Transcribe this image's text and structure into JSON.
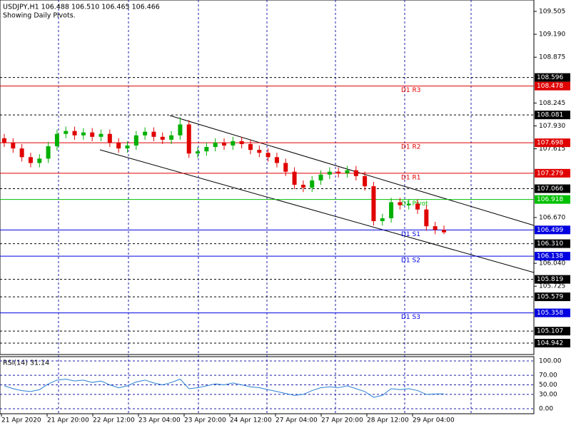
{
  "chart_data": [
    {
      "type": "candlestick",
      "title": "USDJPY,H1  106.488 106.510 106.465 106.466",
      "subtitle": "Showing Daily Pivots.",
      "up_color": "#00b000",
      "down_color": "#e00000",
      "ylim": [
        104.785,
        109.662
      ],
      "yticks": [
        109.505,
        {
          "value": 109.19,
          "label": "109.190"
        },
        108.875,
        108.245,
        {
          "value": 107.93,
          "label": "107.930"
        },
        107.615,
        {
          "value": 106.67,
          "label": "106.670"
        },
        {
          "value": 106.04,
          "label": "106.040"
        },
        105.725
      ],
      "open": [
        107.76,
        107.7,
        107.62,
        107.5,
        107.42,
        107.48,
        107.65,
        107.82,
        107.86,
        107.8,
        107.84,
        107.78,
        107.82,
        107.7,
        107.62,
        107.66,
        107.8,
        107.85,
        107.78,
        107.74,
        107.8,
        107.95,
        107.55,
        107.58,
        107.64,
        107.7,
        107.66,
        107.72,
        107.68,
        107.6,
        107.56,
        107.5,
        107.42,
        107.3,
        107.12,
        107.08,
        107.18,
        107.26,
        107.3,
        107.28,
        107.32,
        107.24,
        107.1,
        106.62,
        106.66,
        106.88,
        106.84,
        106.86,
        106.78,
        106.55,
        106.5
      ],
      "high": [
        107.82,
        107.76,
        107.68,
        107.56,
        107.54,
        107.71,
        107.88,
        107.92,
        107.92,
        107.9,
        107.9,
        107.88,
        107.88,
        107.76,
        107.72,
        107.86,
        107.91,
        107.91,
        107.84,
        107.86,
        108.05,
        108.01,
        107.64,
        107.7,
        107.76,
        107.76,
        107.78,
        107.78,
        107.74,
        107.66,
        107.62,
        107.56,
        107.48,
        107.36,
        107.18,
        107.24,
        107.32,
        107.36,
        107.36,
        107.38,
        107.38,
        107.3,
        107.16,
        106.72,
        106.94,
        106.94,
        106.92,
        106.92,
        106.84,
        106.61,
        106.56
      ],
      "low": [
        107.64,
        107.56,
        107.44,
        107.36,
        107.36,
        107.42,
        107.59,
        107.76,
        107.74,
        107.74,
        107.72,
        107.72,
        107.64,
        107.56,
        107.56,
        107.6,
        107.74,
        107.72,
        107.68,
        107.68,
        107.74,
        107.49,
        107.49,
        107.52,
        107.58,
        107.6,
        107.6,
        107.62,
        107.54,
        107.5,
        107.44,
        107.36,
        107.24,
        107.06,
        107.02,
        107.02,
        107.12,
        107.2,
        107.22,
        107.22,
        107.18,
        107.04,
        106.56,
        106.56,
        106.6,
        106.78,
        106.78,
        106.72,
        106.49,
        106.44,
        106.44
      ],
      "close": [
        107.7,
        107.62,
        107.5,
        107.42,
        107.48,
        107.65,
        107.82,
        107.86,
        107.8,
        107.84,
        107.78,
        107.82,
        107.7,
        107.62,
        107.66,
        107.8,
        107.85,
        107.78,
        107.74,
        107.8,
        107.95,
        107.55,
        107.58,
        107.64,
        107.7,
        107.66,
        107.72,
        107.68,
        107.6,
        107.56,
        107.5,
        107.42,
        107.3,
        107.12,
        107.08,
        107.18,
        107.26,
        107.3,
        107.28,
        107.32,
        107.24,
        107.1,
        106.62,
        106.66,
        106.88,
        106.84,
        106.86,
        106.78,
        106.55,
        106.5,
        106.466
      ],
      "levels": [
        {
          "value": 108.478,
          "label": "D1 R3",
          "color": "#e00000"
        },
        {
          "value": 107.698,
          "label": "D1 R2",
          "color": "#e00000"
        },
        {
          "value": 107.279,
          "label": "D1 R1",
          "color": "#e00000"
        },
        {
          "value": 106.918,
          "label": "D1 Pivot",
          "color": "#00c000"
        },
        {
          "value": 106.499,
          "label": "D1 S1",
          "color": "#0000e0"
        },
        {
          "value": 106.138,
          "label": "D1 S2",
          "color": "#0000e0"
        },
        {
          "value": 105.358,
          "label": "D1 S3",
          "color": "#0000e0"
        }
      ],
      "marked_levels": [
        108.596,
        108.081,
        107.066,
        {
          "value": 106.31,
          "label": "106.310"
        },
        105.819,
        105.579,
        105.107,
        104.942
      ]
    },
    {
      "type": "line",
      "title": "RSI(14) 31.14",
      "color": "#2a7fd4",
      "ylim": [
        -10.4,
        109
      ],
      "yticks": [
        {
          "value": 100,
          "label": "100.00"
        },
        {
          "value": 70,
          "label": "70.00"
        },
        {
          "value": 50,
          "label": "50.00"
        },
        {
          "value": 30,
          "label": "30.00"
        },
        {
          "value": 0,
          "label": "0.00"
        }
      ],
      "values": [
        48,
        42,
        38,
        36,
        40,
        52,
        60,
        62,
        58,
        60,
        55,
        58,
        50,
        44,
        48,
        56,
        60,
        54,
        50,
        55,
        62,
        42,
        44,
        48,
        52,
        50,
        54,
        50,
        46,
        44,
        40,
        36,
        32,
        28,
        30,
        38,
        44,
        46,
        44,
        48,
        42,
        36,
        24,
        28,
        42,
        40,
        42,
        38,
        30,
        31,
        31.14
      ],
      "time_labels": [
        "21 Apr 2020",
        "21 Apr 20:00",
        "22 Apr 12:00",
        "23 Apr 04:00",
        "23 Apr 20:00",
        "24 Apr 12:00",
        "27 Apr 04:00",
        "27 Apr 20:00",
        "28 Apr 12:00",
        "29 Apr 04:00"
      ]
    }
  ]
}
